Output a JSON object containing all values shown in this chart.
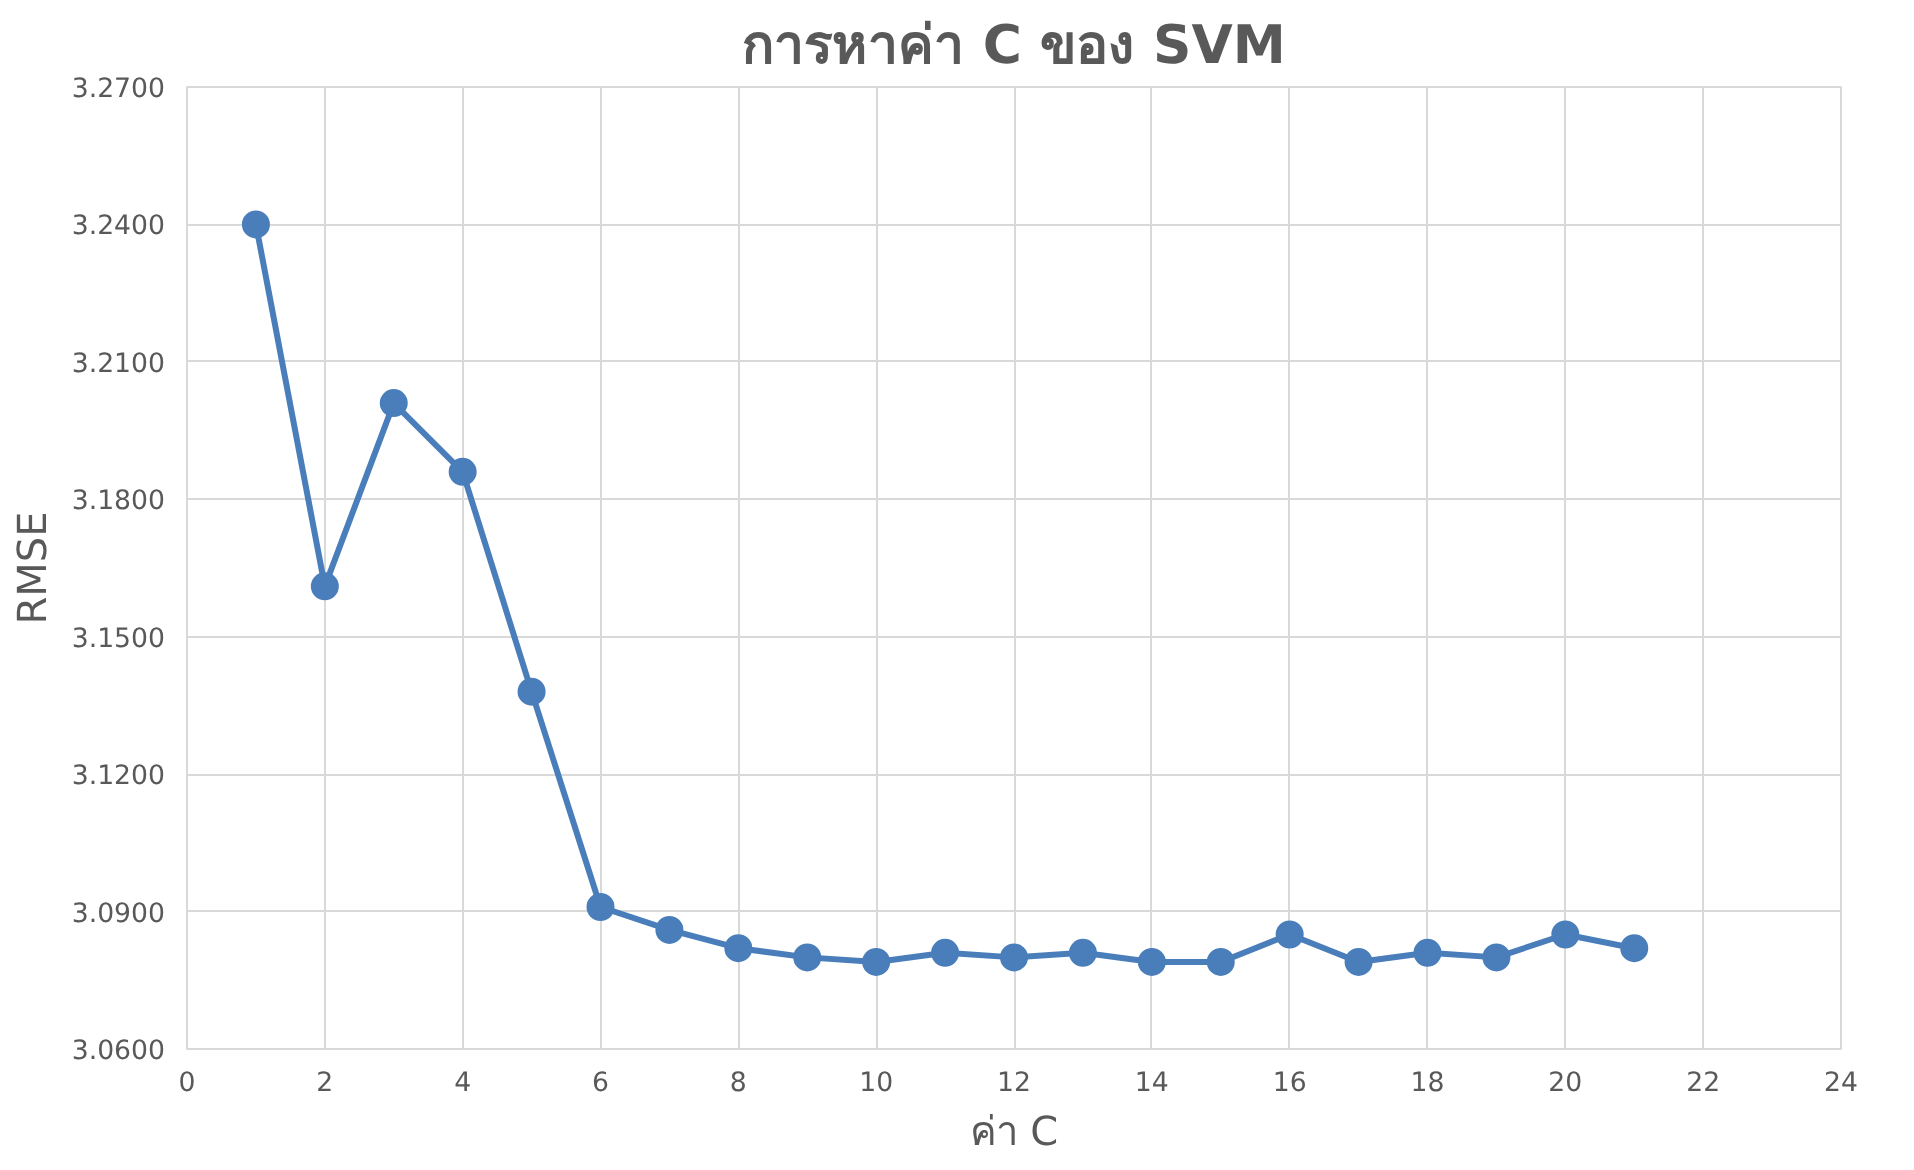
{
  "chart_data": {
    "type": "line",
    "title": "การหาค่า C ของ SVM",
    "xlabel": "ค่า C",
    "ylabel": "RMSE",
    "x": [
      1,
      2,
      3,
      4,
      5,
      6,
      7,
      8,
      9,
      10,
      11,
      12,
      13,
      14,
      15,
      16,
      17,
      18,
      19,
      20,
      21
    ],
    "series": [
      {
        "color": "#4a7ebb",
        "values": [
          3.24,
          3.161,
          3.201,
          3.186,
          3.138,
          3.091,
          3.086,
          3.082,
          3.08,
          3.079,
          3.081,
          3.08,
          3.081,
          3.079,
          3.079,
          3.085,
          3.079,
          3.081,
          3.08,
          3.085,
          3.082
        ]
      }
    ],
    "xlim": [
      0,
      24
    ],
    "xticks": [
      0,
      2,
      4,
      6,
      8,
      10,
      12,
      14,
      16,
      18,
      20,
      22,
      24
    ],
    "ylim": [
      3.06,
      3.27
    ],
    "yticks": [
      {
        "value": 3.06,
        "label": "3.0600"
      },
      {
        "value": 3.09,
        "label": "3.0900"
      },
      {
        "value": 3.12,
        "label": "3.1200"
      },
      {
        "value": 3.15,
        "label": "3.1500"
      },
      {
        "value": 3.18,
        "label": "3.1800"
      },
      {
        "value": 3.21,
        "label": "3.2100"
      },
      {
        "value": 3.24,
        "label": "3.2400"
      },
      {
        "value": 3.27,
        "label": "3.2700"
      }
    ],
    "grid": true,
    "marker": "circle",
    "line_style": "solid"
  }
}
